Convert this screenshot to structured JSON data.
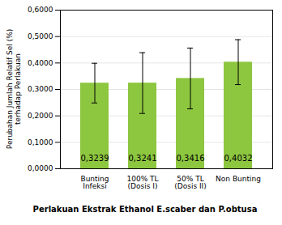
{
  "chart_data": {
    "type": "bar",
    "categories": [
      "Bunting Infeksi",
      "100% TL (Dosis I)",
      "50% TL (Dosis II)",
      "Non Bunting"
    ],
    "values": [
      0.3239,
      0.3241,
      0.3416,
      0.4032
    ],
    "errors": [
      0.075,
      0.115,
      0.115,
      0.085
    ],
    "value_labels": [
      "0,3239",
      "0,3241",
      "0,3416",
      "0,4032"
    ],
    "data_labels": true,
    "color": "#8DC63F",
    "xlabel": "Perlakuan Ekstrak Ethanol E.scaber dan P.obtusa",
    "ylabel": "Perubahan Jumlah Relatif Sel (%)\nterhadap Perlakuan",
    "ylim": [
      0.0,
      0.6
    ],
    "yticks": [
      {
        "value": 0.0,
        "label": "0,0000"
      },
      {
        "value": 0.1,
        "label": "0,1000"
      },
      {
        "value": 0.2,
        "label": "0,2000"
      },
      {
        "value": 0.3,
        "label": "0,3000"
      },
      {
        "value": 0.4,
        "label": "0,4000"
      },
      {
        "value": 0.5,
        "label": "0,5000"
      },
      {
        "value": 0.6,
        "label": "0,6000"
      }
    ],
    "grid": true
  }
}
